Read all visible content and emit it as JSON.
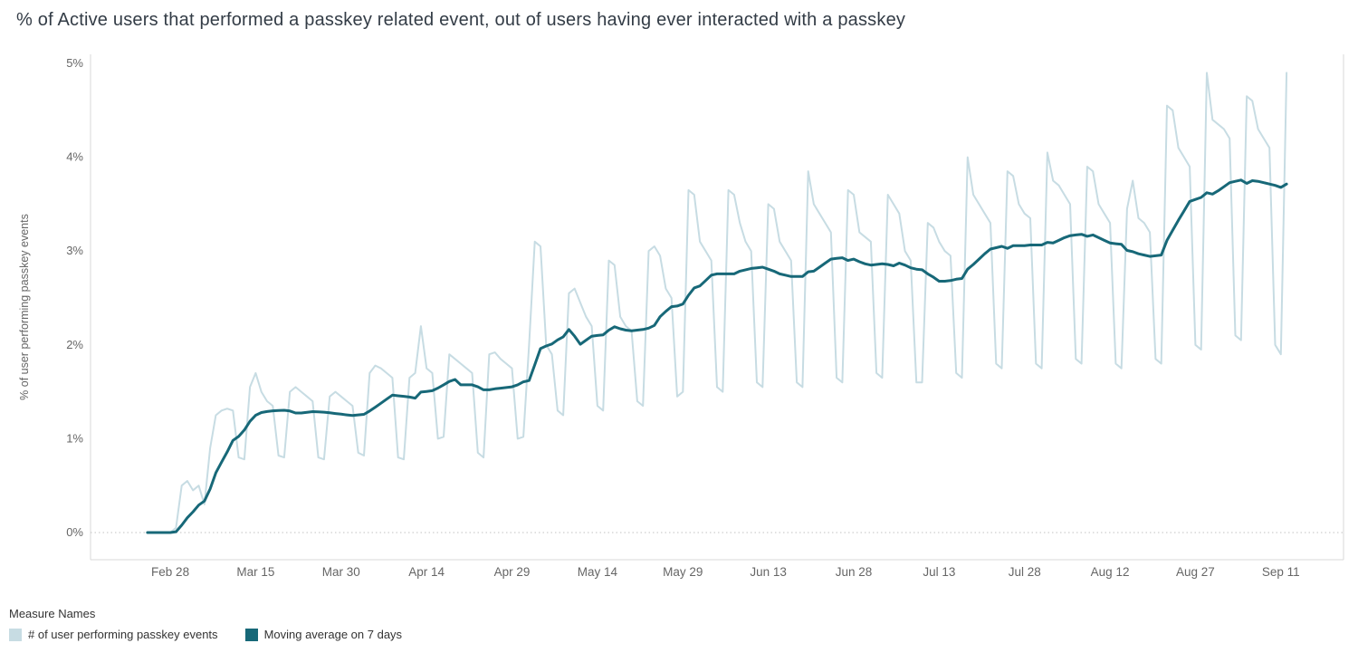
{
  "title": "% of Active users that performed a passkey related event, out of users having ever interacted with a passkey",
  "y_axis": {
    "label": "% of user performing passkey events",
    "ticks": [
      {
        "value": 0,
        "label": "0%"
      },
      {
        "value": 1,
        "label": "1%"
      },
      {
        "value": 2,
        "label": "2%"
      },
      {
        "value": 3,
        "label": "3%"
      },
      {
        "value": 4,
        "label": "4%"
      },
      {
        "value": 5,
        "label": "5%"
      }
    ]
  },
  "x_axis": {
    "ticks": [
      {
        "day": 4,
        "label": "Feb 28"
      },
      {
        "day": 19,
        "label": "Mar 15"
      },
      {
        "day": 34,
        "label": "Mar 30"
      },
      {
        "day": 49,
        "label": "Apr 14"
      },
      {
        "day": 64,
        "label": "Apr 29"
      },
      {
        "day": 79,
        "label": "May 14"
      },
      {
        "day": 94,
        "label": "May 29"
      },
      {
        "day": 109,
        "label": "Jun 13"
      },
      {
        "day": 124,
        "label": "Jun 28"
      },
      {
        "day": 139,
        "label": "Jul 13"
      },
      {
        "day": 154,
        "label": "Jul 28"
      },
      {
        "day": 169,
        "label": "Aug 12"
      },
      {
        "day": 184,
        "label": "Aug 27"
      },
      {
        "day": 199,
        "label": "Sep 11"
      }
    ]
  },
  "legend": {
    "title": "Measure Names",
    "items": [
      {
        "label": "# of user performing passkey events",
        "color": "#c7dce3"
      },
      {
        "label": "Moving average on 7 days",
        "color": "#176878"
      }
    ]
  },
  "colors": {
    "daily_line": "#c7dce3",
    "moving_average_line": "#176878",
    "axis_line": "#d9d9d9",
    "zero_gridline": "#c2c2c2",
    "tick_text": "#666666"
  },
  "chart_data": {
    "type": "line",
    "title": "% of Active users that performed a passkey related event, out of users having ever interacted with a passkey",
    "ylabel": "% of user performing passkey events",
    "ylim": [
      0,
      5
    ],
    "x_unit": "day index (day 0 = Feb 24, daily spacing; ticks every 15 days from Feb 28 to Sep 11)",
    "x_start_label": "Feb 24",
    "x_end_label": "Sep 12",
    "legend_position": "bottom-left",
    "grid": "dotted line at 0% only",
    "series": [
      {
        "name": "# of user performing passkey events",
        "color": "#c7dce3",
        "values": [
          0,
          0,
          0,
          0,
          0,
          0.05,
          0.5,
          0.55,
          0.45,
          0.5,
          0.3,
          0.9,
          1.25,
          1.3,
          1.32,
          1.3,
          0.8,
          0.78,
          1.55,
          1.7,
          1.5,
          1.4,
          1.35,
          0.82,
          0.8,
          1.5,
          1.55,
          1.5,
          1.45,
          1.4,
          0.8,
          0.78,
          1.45,
          1.5,
          1.45,
          1.4,
          1.35,
          0.85,
          0.82,
          1.7,
          1.78,
          1.75,
          1.7,
          1.65,
          0.8,
          0.78,
          1.65,
          1.7,
          2.2,
          1.75,
          1.7,
          1.0,
          1.02,
          1.9,
          1.85,
          1.8,
          1.75,
          1.7,
          0.85,
          0.8,
          1.9,
          1.92,
          1.85,
          1.8,
          1.75,
          1.0,
          1.02,
          2.0,
          3.1,
          3.05,
          2.0,
          1.9,
          1.3,
          1.25,
          2.55,
          2.6,
          2.45,
          2.3,
          2.2,
          1.35,
          1.3,
          2.9,
          2.85,
          2.3,
          2.2,
          2.15,
          1.4,
          1.35,
          3.0,
          3.05,
          2.95,
          2.6,
          2.5,
          1.45,
          1.5,
          3.65,
          3.6,
          3.1,
          3.0,
          2.9,
          1.55,
          1.5,
          3.65,
          3.6,
          3.3,
          3.1,
          3.0,
          1.6,
          1.55,
          3.5,
          3.45,
          3.1,
          3.0,
          2.9,
          1.6,
          1.55,
          3.85,
          3.5,
          3.4,
          3.3,
          3.2,
          1.65,
          1.6,
          3.65,
          3.6,
          3.2,
          3.15,
          3.1,
          1.7,
          1.65,
          3.6,
          3.5,
          3.4,
          3.0,
          2.9,
          1.6,
          1.6,
          3.3,
          3.25,
          3.1,
          3.0,
          2.95,
          1.7,
          1.65,
          4.0,
          3.6,
          3.5,
          3.4,
          3.3,
          1.8,
          1.75,
          3.85,
          3.8,
          3.5,
          3.4,
          3.35,
          1.8,
          1.75,
          4.05,
          3.75,
          3.7,
          3.6,
          3.5,
          1.85,
          1.8,
          3.9,
          3.85,
          3.5,
          3.4,
          3.3,
          1.8,
          1.75,
          3.45,
          3.75,
          3.35,
          3.3,
          3.2,
          1.85,
          1.8,
          4.55,
          4.5,
          4.1,
          4.0,
          3.9,
          2.0,
          1.95,
          4.9,
          4.4,
          4.35,
          4.3,
          4.2,
          2.1,
          2.05,
          4.65,
          4.6,
          4.3,
          4.2,
          4.1,
          2.0,
          1.9,
          4.9
        ]
      },
      {
        "name": "Moving average on 7 days",
        "color": "#176878",
        "derived": "trailing 7-day mean of the daily series above"
      }
    ]
  }
}
